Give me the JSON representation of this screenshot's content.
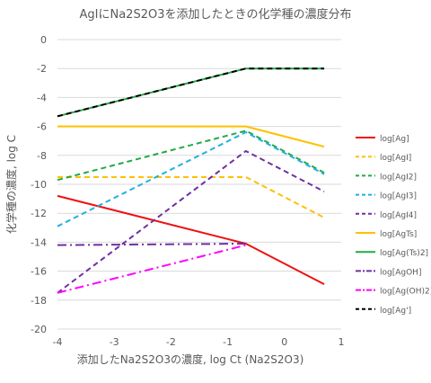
{
  "chart_data": {
    "type": "line",
    "title": "AgIにNa2S2O3を添加したときの化学種の濃度分布",
    "xlabel": "添加したNa2S2O3の濃度, log Ct (Na2S2O3)",
    "ylabel": "化学種の濃度, log C",
    "xlim": [
      -4,
      1
    ],
    "ylim": [
      -20,
      0
    ],
    "xticks": [
      -4,
      -3,
      -2,
      -1,
      0,
      1
    ],
    "yticks": [
      0,
      -2,
      -4,
      -6,
      -8,
      -10,
      -12,
      -14,
      -16,
      -18,
      -20
    ],
    "grid": "horizontal",
    "legend_position": "right",
    "series": [
      {
        "name": "log[Ag]",
        "color": "#ee1111",
        "dash": "solid",
        "x": [
          -4,
          -0.68,
          0.7
        ],
        "y": [
          -10.8,
          -14.1,
          -16.9
        ]
      },
      {
        "name": "log[AgI]",
        "color": "#ffc000",
        "dash": "dashed",
        "x": [
          -4,
          -0.68,
          0.7
        ],
        "y": [
          -9.5,
          -9.5,
          -12.3
        ]
      },
      {
        "name": "log[AgI2]",
        "color": "#22aa44",
        "dash": "dashed",
        "x": [
          -4,
          -0.68,
          0.7
        ],
        "y": [
          -9.7,
          -6.3,
          -9.2
        ]
      },
      {
        "name": "log[AgI3]",
        "color": "#22b0e0",
        "dash": "dashed",
        "x": [
          -4,
          -0.68,
          0.7
        ],
        "y": [
          -12.9,
          -6.4,
          -9.3
        ]
      },
      {
        "name": "log[AgI4]",
        "color": "#7030a0",
        "dash": "dashed",
        "x": [
          -4,
          -0.68,
          0.7
        ],
        "y": [
          -17.5,
          -7.7,
          -10.5
        ]
      },
      {
        "name": "log[AgTs]",
        "color": "#ffc000",
        "dash": "solid",
        "x": [
          -4,
          -0.68,
          0.7
        ],
        "y": [
          -6.0,
          -6.0,
          -7.4
        ]
      },
      {
        "name": "log[Ag(Ts)2]",
        "color": "#22aa44",
        "dash": "solid",
        "x": [],
        "y": []
      },
      {
        "name": "log[AgOH]",
        "color": "#7030a0",
        "dash": "dashdot",
        "x": [
          -4,
          -0.68
        ],
        "y": [
          -14.2,
          -14.1
        ]
      },
      {
        "name": "log[Ag(OH)2]",
        "color": "#ff00ff",
        "dash": "dashdot",
        "x": [
          -4,
          -0.68
        ],
        "y": [
          -17.5,
          -14.2
        ]
      },
      {
        "name": "log[Ag']",
        "color": "#000000",
        "dash": "dashed",
        "x": [
          -4,
          -0.68,
          0.7
        ],
        "y": [
          -5.3,
          -2.0,
          -2.0
        ]
      }
    ]
  },
  "colors": {
    "grid": "#d9d9d9",
    "text": "#595959",
    "agPrime_underlay": "#22aa44"
  }
}
